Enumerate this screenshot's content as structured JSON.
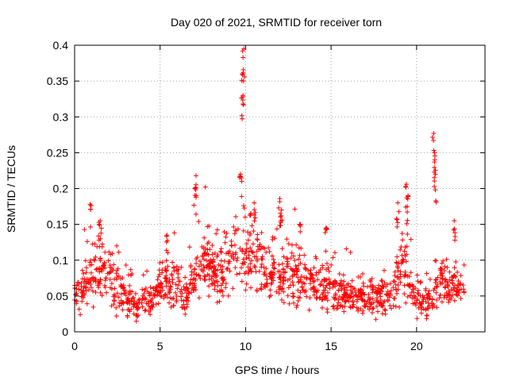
{
  "chart_data": {
    "type": "scatter",
    "title": "Day 020 of 2021, SRMTID for receiver torn",
    "xlabel": "GPS time / hours",
    "ylabel": "SRMTID / TECUs",
    "xlim": [
      0,
      24
    ],
    "ylim": [
      0,
      0.4
    ],
    "x_ticks": [
      0,
      5,
      10,
      15,
      20
    ],
    "x_tick_labels": [
      "0",
      "5",
      "10",
      "15",
      "20"
    ],
    "y_ticks": [
      0,
      0.05,
      0.1,
      0.15,
      0.2,
      0.25,
      0.3,
      0.35,
      0.4
    ],
    "y_tick_labels": [
      "0",
      "0.05",
      "0.1",
      "0.15",
      "0.2",
      "0.25",
      "0.3",
      "0.35",
      "0.4"
    ],
    "grid": true,
    "marker": "+",
    "color": "#ff0000",
    "data_range_hours": [
      0,
      22.8
    ],
    "notable_peaks": [
      {
        "x": 9.9,
        "y": 0.395
      },
      {
        "x": 9.8,
        "y": 0.36
      },
      {
        "x": 9.85,
        "y": 0.33
      },
      {
        "x": 9.7,
        "y": 0.22
      },
      {
        "x": 7.1,
        "y": 0.218
      },
      {
        "x": 7.05,
        "y": 0.2
      },
      {
        "x": 21.0,
        "y": 0.277
      },
      {
        "x": 21.05,
        "y": 0.25
      },
      {
        "x": 21.1,
        "y": 0.22
      },
      {
        "x": 19.4,
        "y": 0.206
      },
      {
        "x": 19.5,
        "y": 0.19
      },
      {
        "x": 18.9,
        "y": 0.18
      },
      {
        "x": 12.0,
        "y": 0.186
      },
      {
        "x": 12.1,
        "y": 0.17
      },
      {
        "x": 10.5,
        "y": 0.18
      },
      {
        "x": 10.3,
        "y": 0.165
      },
      {
        "x": 0.9,
        "y": 0.178
      },
      {
        "x": 1.5,
        "y": 0.155
      },
      {
        "x": 5.4,
        "y": 0.135
      },
      {
        "x": 22.2,
        "y": 0.155
      },
      {
        "x": 14.7,
        "y": 0.145
      },
      {
        "x": 13.2,
        "y": 0.15
      }
    ],
    "envelope": [
      {
        "x": 0.0,
        "base": 0.055,
        "spread": 0.025
      },
      {
        "x": 1.0,
        "base": 0.075,
        "spread": 0.035
      },
      {
        "x": 1.5,
        "base": 0.09,
        "spread": 0.04
      },
      {
        "x": 2.5,
        "base": 0.06,
        "spread": 0.03
      },
      {
        "x": 3.5,
        "base": 0.035,
        "spread": 0.018
      },
      {
        "x": 4.5,
        "base": 0.05,
        "spread": 0.02
      },
      {
        "x": 5.5,
        "base": 0.07,
        "spread": 0.03
      },
      {
        "x": 6.5,
        "base": 0.05,
        "spread": 0.025
      },
      {
        "x": 7.5,
        "base": 0.09,
        "spread": 0.035
      },
      {
        "x": 8.5,
        "base": 0.075,
        "spread": 0.03
      },
      {
        "x": 9.5,
        "base": 0.11,
        "spread": 0.045
      },
      {
        "x": 10.5,
        "base": 0.1,
        "spread": 0.04
      },
      {
        "x": 11.5,
        "base": 0.075,
        "spread": 0.03
      },
      {
        "x": 12.5,
        "base": 0.08,
        "spread": 0.035
      },
      {
        "x": 13.5,
        "base": 0.07,
        "spread": 0.03
      },
      {
        "x": 14.5,
        "base": 0.065,
        "spread": 0.03
      },
      {
        "x": 15.5,
        "base": 0.055,
        "spread": 0.025
      },
      {
        "x": 16.5,
        "base": 0.05,
        "spread": 0.025
      },
      {
        "x": 17.5,
        "base": 0.045,
        "spread": 0.022
      },
      {
        "x": 18.5,
        "base": 0.05,
        "spread": 0.025
      },
      {
        "x": 19.2,
        "base": 0.1,
        "spread": 0.045
      },
      {
        "x": 19.8,
        "base": 0.05,
        "spread": 0.02
      },
      {
        "x": 20.5,
        "base": 0.035,
        "spread": 0.015
      },
      {
        "x": 21.2,
        "base": 0.07,
        "spread": 0.03
      },
      {
        "x": 22.0,
        "base": 0.06,
        "spread": 0.025
      },
      {
        "x": 22.8,
        "base": 0.055,
        "spread": 0.02
      }
    ]
  }
}
